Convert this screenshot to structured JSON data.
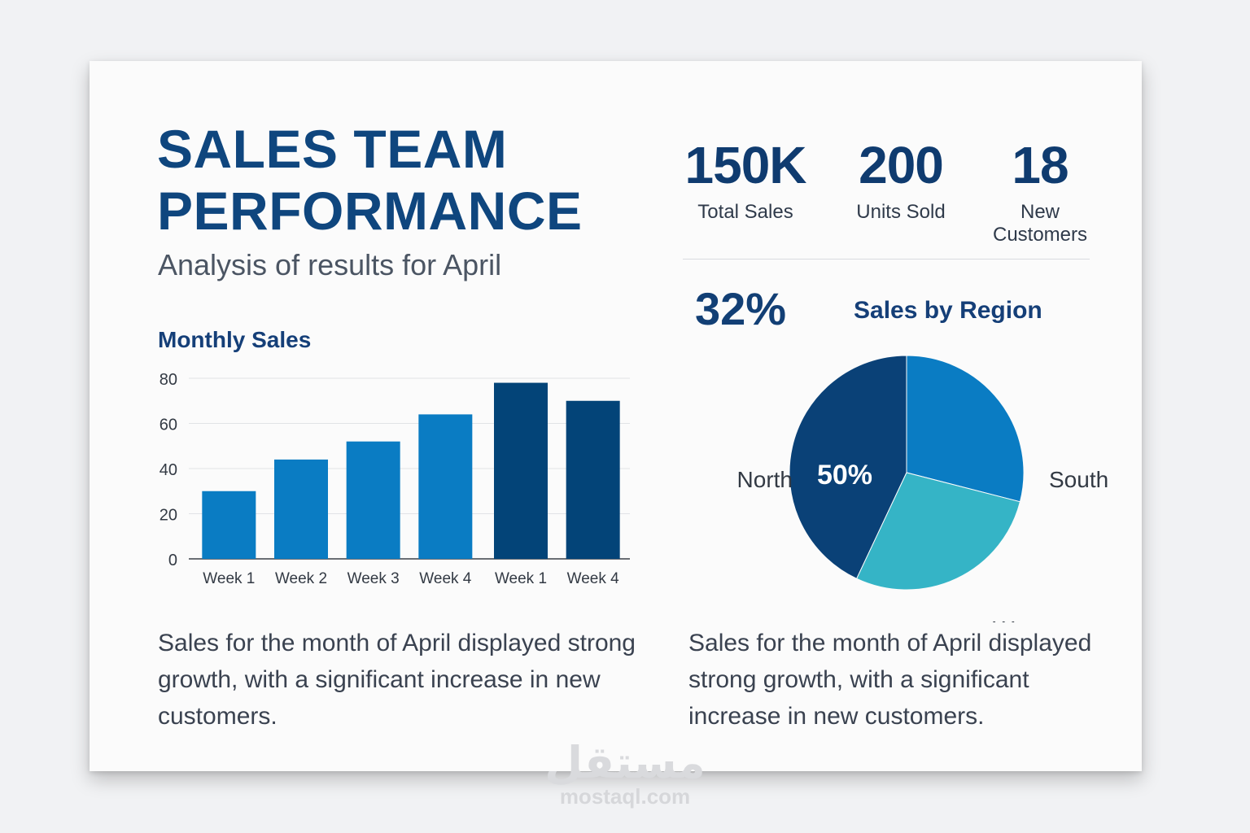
{
  "header": {
    "title": "SALES TEAM PERFORMANCE",
    "subtitle": "Analysis of results for April"
  },
  "stats": [
    {
      "value": "150K",
      "label": "Total Sales"
    },
    {
      "value": "200",
      "label": "Units Sold"
    },
    {
      "value": "18",
      "label": "New Customers"
    }
  ],
  "highlight_pct": "32%",
  "descriptions": {
    "left": "Sales for the month of April displayed strong growth, with a significant increase in new customers.",
    "right": "Sales for the month of April displayed strong growth, with a significant increase in new customers."
  },
  "watermark": {
    "logo": "مستقل",
    "url": "mostaql.com"
  },
  "colors": {
    "primary": "#0f467e",
    "bar_light": "#0a7cc3",
    "bar_dark": "#034478",
    "pie_north": "#0a4177",
    "pie_south": "#0a7cc3",
    "pie_west": "#35b4c6"
  },
  "chart_data": [
    {
      "type": "bar",
      "title": "Monthly Sales",
      "categories": [
        "Week 1",
        "Week 2",
        "Week 3",
        "Week 4",
        "Week 1",
        "Week 4"
      ],
      "values": [
        30,
        44,
        52,
        64,
        78,
        70
      ],
      "ylim": [
        0,
        80
      ],
      "yticks": [
        0,
        20,
        40,
        60,
        80
      ],
      "grid": true,
      "xlabel": "",
      "ylabel": ""
    },
    {
      "type": "pie",
      "title": "Sales by Region",
      "slices": [
        {
          "label": "North",
          "value": 43
        },
        {
          "label": "South",
          "value": 29
        },
        {
          "label": "West",
          "value": 28
        }
      ],
      "data_label": "50%"
    }
  ]
}
